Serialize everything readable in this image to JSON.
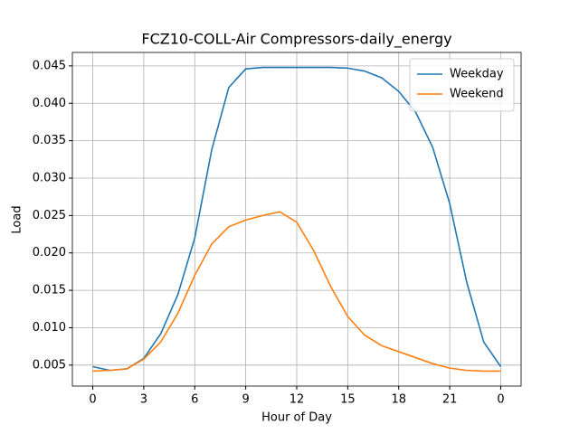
{
  "chart_data": {
    "type": "line",
    "title": "FCZ10-COLL-Air Compressors-daily_energy",
    "x_label": "Hour of Day",
    "y_label": "Load",
    "x": [
      0,
      1,
      2,
      3,
      4,
      5,
      6,
      7,
      8,
      9,
      10,
      11,
      12,
      13,
      14,
      15,
      16,
      17,
      18,
      19,
      20,
      21,
      22,
      23,
      24
    ],
    "series": [
      {
        "name": "Weekday",
        "color": "#1f77b4",
        "values": [
          0.0048,
          0.0043,
          0.0045,
          0.0059,
          0.0092,
          0.0144,
          0.022,
          0.0338,
          0.0421,
          0.0446,
          0.0448,
          0.0448,
          0.0448,
          0.0448,
          0.0448,
          0.0447,
          0.0443,
          0.0434,
          0.0416,
          0.0388,
          0.0341,
          0.0266,
          0.0161,
          0.0081,
          0.0048
        ]
      },
      {
        "name": "Weekend",
        "color": "#ff7f0e",
        "values": [
          0.0042,
          0.0043,
          0.0045,
          0.0058,
          0.0081,
          0.0119,
          0.017,
          0.0212,
          0.0235,
          0.0244,
          0.025,
          0.0255,
          0.0241,
          0.0203,
          0.0155,
          0.0115,
          0.009,
          0.0076,
          0.0068,
          0.006,
          0.0052,
          0.0046,
          0.0043,
          0.0042,
          0.0042
        ]
      }
    ],
    "xlim": [
      -1.2,
      25.2
    ],
    "xticks": [
      0,
      3,
      6,
      9,
      12,
      15,
      18,
      21,
      {
        "value": 24,
        "label": "0"
      }
    ],
    "ylim": [
      0.0022,
      0.0468
    ],
    "yticks": [
      0.005,
      {
        "value": 0.01,
        "label": "0.010"
      },
      0.015,
      {
        "value": 0.02,
        "label": "0.020"
      },
      0.025,
      {
        "value": 0.03,
        "label": "0.030"
      },
      0.035,
      {
        "value": 0.04,
        "label": "0.040"
      },
      0.045
    ],
    "grid": true,
    "legend": "upper-right"
  }
}
